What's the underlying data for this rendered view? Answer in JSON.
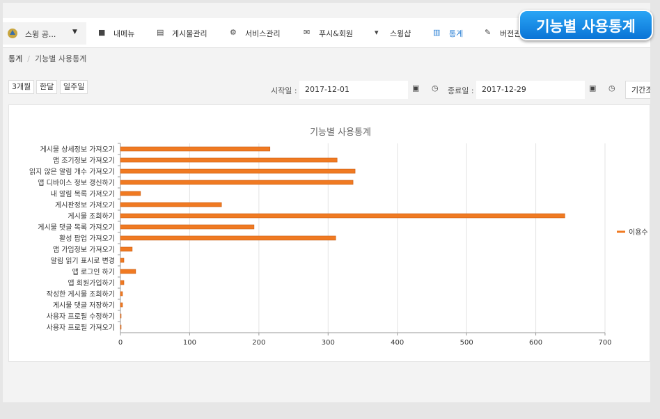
{
  "nav": {
    "site": "스윙 공...",
    "items": [
      "내메뉴",
      "게시물관리",
      "서비스관리",
      "푸시&회원",
      "스윙샵",
      "통계",
      "버전관리"
    ]
  },
  "badge": "기능별 사용통계",
  "breadcrumb": [
    "통계",
    "기능별 사용통계"
  ],
  "ranges": [
    "3개월",
    "한달",
    "일주일"
  ],
  "filter": {
    "start_label": "시작일 :",
    "start": "2017-12-01",
    "end_label": "종료일 :",
    "end": "2017-12-29",
    "search": "기간조회"
  },
  "chart_data": {
    "type": "hbar",
    "title": "기능별 사용통계",
    "categories": [
      "게시물 상세정보 가져오기",
      "앱 조기정보 가져오기",
      "읽지 않은 알림 개수 가져오기",
      "앱 디바이스 정보 갱신하기",
      "내 알림 목록 가져오기",
      "게시판정보 가져오기",
      "게시물 조회하기",
      "게시물 댓글 목록 가져오기",
      "활성 팝업 가져오기",
      "앱 가입정보 가져오기",
      "알림 읽기 표시로 변경",
      "앱 로그인 하기",
      "앱 회원가입하기",
      "작성한 게시물 조회하기",
      "게시물 댓글 저장하기",
      "사용자 프로필 수정하기",
      "사용자 프로필 가져오기"
    ],
    "series": [
      {
        "name": "이용수",
        "color": "#f07a22",
        "values": [
          216,
          313,
          339,
          336,
          29,
          146,
          642,
          193,
          311,
          17,
          5,
          22,
          5,
          3,
          3,
          1,
          1
        ]
      }
    ],
    "xlim": [
      0,
      700
    ],
    "xticks": [
      0,
      100,
      200,
      300,
      400,
      500,
      600,
      700
    ],
    "grid": true,
    "legend": "right"
  }
}
